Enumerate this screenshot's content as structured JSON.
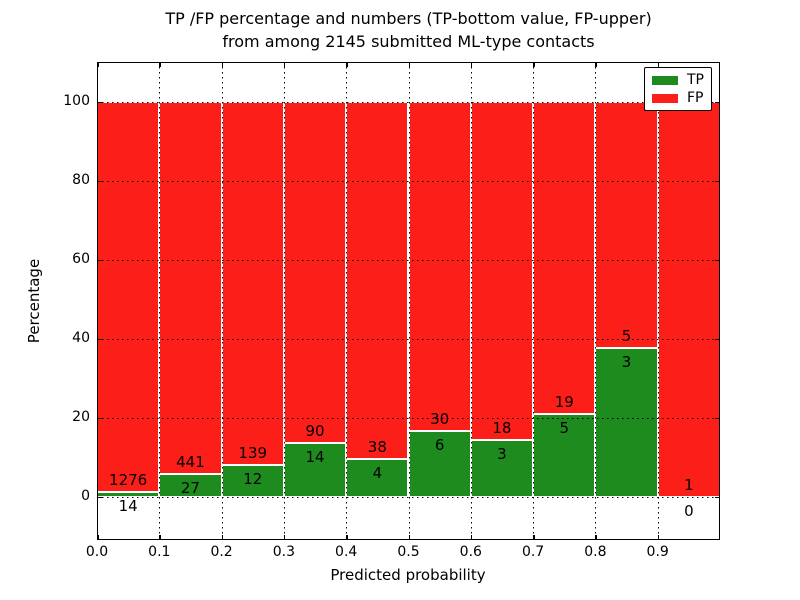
{
  "title": {
    "line1": "TP /FP percentage and numbers (TP-bottom value, FP-upper)",
    "line2": "from among 2145 submitted ML-type contacts"
  },
  "chart_data": {
    "type": "bar",
    "subtype": "stacked-percentage-histogram",
    "title": "TP /FP percentage and numbers (TP-bottom value, FP-upper) from among 2145 submitted ML-type contacts",
    "xlabel": "Predicted probability",
    "ylabel": "Percentage",
    "xlim": [
      0.0,
      1.0
    ],
    "ylim": [
      -11,
      110
    ],
    "x_tick_labels": [
      "0.0",
      "0.1",
      "0.2",
      "0.3",
      "0.4",
      "0.5",
      "0.6",
      "0.7",
      "0.8",
      "0.9"
    ],
    "y_ticks": [
      0,
      20,
      40,
      60,
      80,
      100
    ],
    "bin_width": 0.1,
    "grid": "dotted",
    "total_contacts": 2145,
    "categories": [
      "0.0-0.1",
      "0.1-0.2",
      "0.2-0.3",
      "0.3-0.4",
      "0.4-0.5",
      "0.5-0.6",
      "0.6-0.7",
      "0.7-0.8",
      "0.8-0.9",
      "0.9-1.0"
    ],
    "series": [
      {
        "name": "TP",
        "color": "#1e8b1e",
        "counts": [
          14,
          27,
          12,
          14,
          4,
          6,
          3,
          5,
          3,
          0
        ],
        "percents": [
          1.09,
          5.77,
          7.95,
          13.46,
          9.52,
          16.67,
          14.29,
          20.83,
          37.5,
          0.0
        ]
      },
      {
        "name": "FP",
        "color": "#fb1e19",
        "counts": [
          1276,
          441,
          139,
          90,
          38,
          30,
          18,
          19,
          5,
          1
        ],
        "percents": [
          98.91,
          94.23,
          92.05,
          86.54,
          90.48,
          83.33,
          85.71,
          79.17,
          62.5,
          100.0
        ]
      }
    ],
    "legend": {
      "position": "upper right",
      "entries": [
        {
          "label": "TP",
          "color": "#1e8b1e"
        },
        {
          "label": "FP",
          "color": "#fb1e19"
        }
      ]
    },
    "annotation_rule": "FP count printed above TP-bar top, TP count printed below TP-bar top"
  }
}
